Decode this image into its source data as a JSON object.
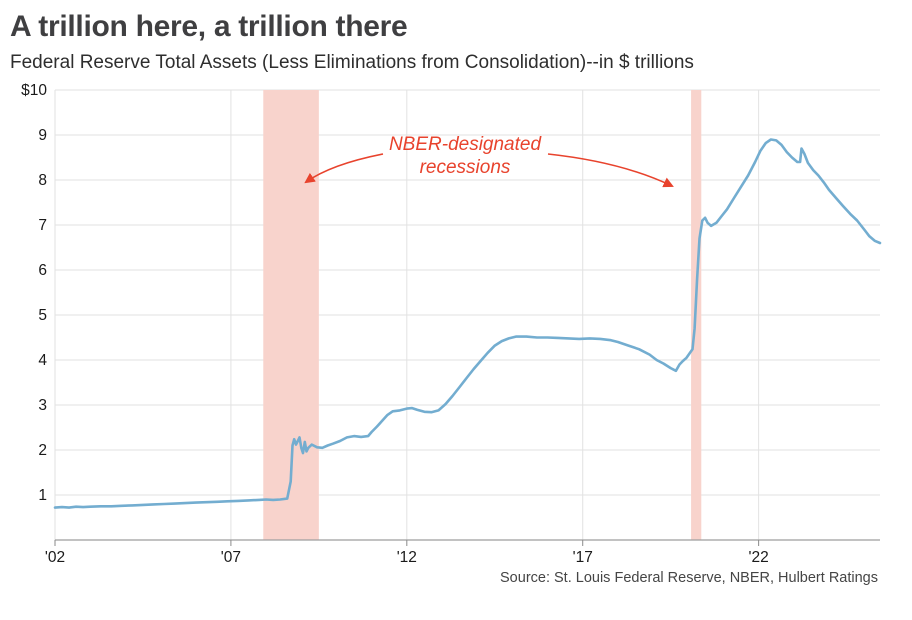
{
  "chart_data": {
    "type": "line",
    "title": "A trillion here, a trillion there",
    "subtitle": "Federal Reserve Total Assets (Less Eliminations from Consolidation)--in $ trillions",
    "source": "Source: St. Louis Federal Reserve, NBER, Hulbert Ratings",
    "x_domain": [
      2002,
      2025.45
    ],
    "y_domain": [
      0,
      10
    ],
    "grid": true,
    "x_ticks": [
      {
        "value": 2002,
        "label": "'02"
      },
      {
        "value": 2007,
        "label": "'07"
      },
      {
        "value": 2012,
        "label": "'12"
      },
      {
        "value": 2017,
        "label": "'17"
      },
      {
        "value": 2022,
        "label": "'22"
      }
    ],
    "y_ticks": [
      {
        "value": 1,
        "label": "1"
      },
      {
        "value": 2,
        "label": "2"
      },
      {
        "value": 3,
        "label": "3"
      },
      {
        "value": 4,
        "label": "4"
      },
      {
        "value": 5,
        "label": "5"
      },
      {
        "value": 6,
        "label": "6"
      },
      {
        "value": 7,
        "label": "7"
      },
      {
        "value": 8,
        "label": "8"
      },
      {
        "value": 9,
        "label": "9"
      },
      {
        "value": 10,
        "label": "$10"
      }
    ],
    "recessions": [
      {
        "start": 2007.92,
        "end": 2009.5
      },
      {
        "start": 2020.08,
        "end": 2020.37
      }
    ],
    "annotation": {
      "lines": [
        "NBER-designated",
        "recessions"
      ],
      "x": 465,
      "y": 74,
      "arrows": [
        {
          "from": [
            383,
            78
          ],
          "ctrl": [
            332,
            88
          ],
          "to": [
            306,
            106
          ]
        },
        {
          "from": [
            548,
            78
          ],
          "ctrl": [
            622,
            86
          ],
          "to": [
            672,
            110
          ]
        }
      ]
    },
    "style": {
      "line_color": "#73add0",
      "recession_color": "#f8d3cc",
      "annotation_color": "#e8432d",
      "grid_color": "#e2e2e2",
      "axis_color": "#9e9e9e",
      "tick_color": "#8a8a8a",
      "label_color": "#1a1a1a",
      "title_color": "#3f3f41",
      "subtitle_color": "#2e2e2e",
      "source_color": "#454545"
    },
    "series": [
      {
        "name": "Federal Reserve Total Assets",
        "color": "#73add0",
        "points": [
          [
            2002.0,
            0.72
          ],
          [
            2002.2,
            0.73
          ],
          [
            2002.4,
            0.72
          ],
          [
            2002.6,
            0.74
          ],
          [
            2002.8,
            0.73
          ],
          [
            2003.0,
            0.74
          ],
          [
            2003.3,
            0.75
          ],
          [
            2003.6,
            0.75
          ],
          [
            2003.9,
            0.76
          ],
          [
            2004.2,
            0.77
          ],
          [
            2004.5,
            0.78
          ],
          [
            2004.8,
            0.79
          ],
          [
            2005.1,
            0.8
          ],
          [
            2005.4,
            0.81
          ],
          [
            2005.7,
            0.82
          ],
          [
            2006.0,
            0.83
          ],
          [
            2006.3,
            0.84
          ],
          [
            2006.6,
            0.85
          ],
          [
            2006.9,
            0.86
          ],
          [
            2007.2,
            0.87
          ],
          [
            2007.5,
            0.88
          ],
          [
            2007.8,
            0.89
          ],
          [
            2008.0,
            0.9
          ],
          [
            2008.2,
            0.89
          ],
          [
            2008.4,
            0.9
          ],
          [
            2008.6,
            0.92
          ],
          [
            2008.7,
            1.3
          ],
          [
            2008.75,
            2.1
          ],
          [
            2008.8,
            2.24
          ],
          [
            2008.85,
            2.12
          ],
          [
            2008.9,
            2.2
          ],
          [
            2008.95,
            2.28
          ],
          [
            2009.0,
            2.05
          ],
          [
            2009.05,
            1.93
          ],
          [
            2009.1,
            2.18
          ],
          [
            2009.15,
            1.97
          ],
          [
            2009.2,
            2.05
          ],
          [
            2009.3,
            2.12
          ],
          [
            2009.45,
            2.06
          ],
          [
            2009.6,
            2.05
          ],
          [
            2009.75,
            2.1
          ],
          [
            2009.9,
            2.14
          ],
          [
            2010.1,
            2.2
          ],
          [
            2010.3,
            2.28
          ],
          [
            2010.5,
            2.31
          ],
          [
            2010.7,
            2.29
          ],
          [
            2010.9,
            2.31
          ],
          [
            2011.0,
            2.4
          ],
          [
            2011.15,
            2.52
          ],
          [
            2011.3,
            2.65
          ],
          [
            2011.45,
            2.78
          ],
          [
            2011.6,
            2.86
          ],
          [
            2011.8,
            2.88
          ],
          [
            2012.0,
            2.92
          ],
          [
            2012.15,
            2.93
          ],
          [
            2012.3,
            2.89
          ],
          [
            2012.5,
            2.85
          ],
          [
            2012.7,
            2.84
          ],
          [
            2012.9,
            2.88
          ],
          [
            2013.1,
            3.02
          ],
          [
            2013.3,
            3.2
          ],
          [
            2013.5,
            3.4
          ],
          [
            2013.7,
            3.6
          ],
          [
            2013.9,
            3.8
          ],
          [
            2014.1,
            3.98
          ],
          [
            2014.3,
            4.16
          ],
          [
            2014.5,
            4.32
          ],
          [
            2014.7,
            4.42
          ],
          [
            2014.9,
            4.48
          ],
          [
            2015.1,
            4.52
          ],
          [
            2015.4,
            4.52
          ],
          [
            2015.7,
            4.5
          ],
          [
            2016.0,
            4.5
          ],
          [
            2016.3,
            4.49
          ],
          [
            2016.6,
            4.48
          ],
          [
            2016.9,
            4.47
          ],
          [
            2017.2,
            4.48
          ],
          [
            2017.5,
            4.47
          ],
          [
            2017.8,
            4.44
          ],
          [
            2018.0,
            4.4
          ],
          [
            2018.3,
            4.32
          ],
          [
            2018.6,
            4.24
          ],
          [
            2018.9,
            4.12
          ],
          [
            2019.1,
            4.0
          ],
          [
            2019.3,
            3.92
          ],
          [
            2019.5,
            3.82
          ],
          [
            2019.65,
            3.76
          ],
          [
            2019.75,
            3.9
          ],
          [
            2019.85,
            3.98
          ],
          [
            2019.95,
            4.05
          ],
          [
            2020.05,
            4.16
          ],
          [
            2020.12,
            4.24
          ],
          [
            2020.18,
            4.7
          ],
          [
            2020.25,
            5.8
          ],
          [
            2020.32,
            6.7
          ],
          [
            2020.4,
            7.1
          ],
          [
            2020.48,
            7.16
          ],
          [
            2020.55,
            7.05
          ],
          [
            2020.65,
            6.98
          ],
          [
            2020.8,
            7.05
          ],
          [
            2020.95,
            7.2
          ],
          [
            2021.1,
            7.35
          ],
          [
            2021.3,
            7.6
          ],
          [
            2021.5,
            7.85
          ],
          [
            2021.7,
            8.1
          ],
          [
            2021.9,
            8.4
          ],
          [
            2022.05,
            8.65
          ],
          [
            2022.2,
            8.82
          ],
          [
            2022.35,
            8.9
          ],
          [
            2022.5,
            8.88
          ],
          [
            2022.65,
            8.78
          ],
          [
            2022.8,
            8.62
          ],
          [
            2022.95,
            8.5
          ],
          [
            2023.1,
            8.4
          ],
          [
            2023.18,
            8.4
          ],
          [
            2023.22,
            8.7
          ],
          [
            2023.3,
            8.58
          ],
          [
            2023.4,
            8.38
          ],
          [
            2023.55,
            8.22
          ],
          [
            2023.7,
            8.1
          ],
          [
            2023.85,
            7.95
          ],
          [
            2024.0,
            7.78
          ],
          [
            2024.2,
            7.6
          ],
          [
            2024.4,
            7.42
          ],
          [
            2024.6,
            7.25
          ],
          [
            2024.8,
            7.1
          ],
          [
            2025.0,
            6.9
          ],
          [
            2025.15,
            6.75
          ],
          [
            2025.3,
            6.65
          ],
          [
            2025.45,
            6.6
          ]
        ]
      }
    ]
  }
}
